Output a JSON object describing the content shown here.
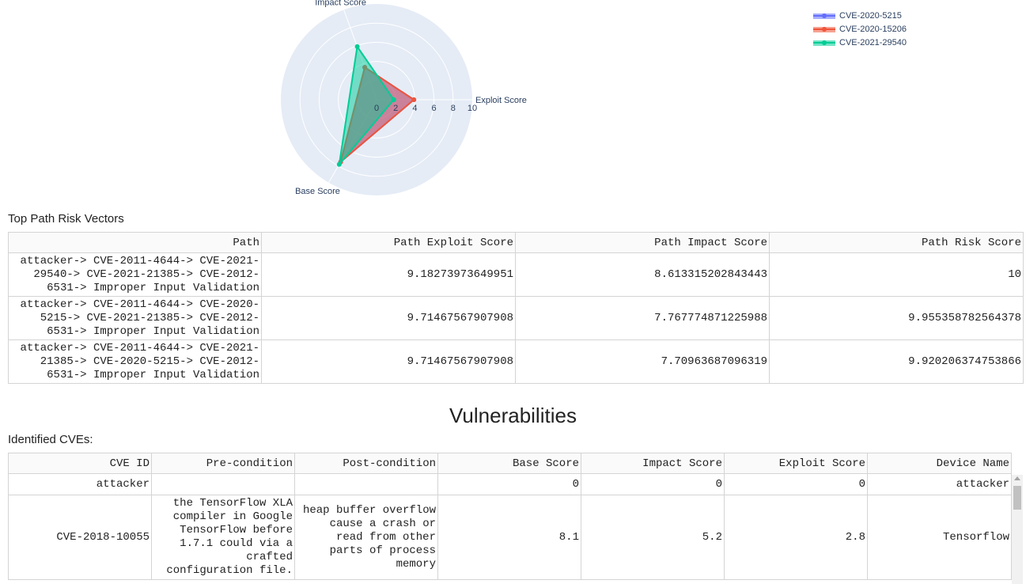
{
  "radar_chart": {
    "chart_data": {
      "type": "radar",
      "axes": [
        "Exploit Score",
        "Impact Score",
        "Base Score"
      ],
      "radial_range": [
        0,
        10
      ],
      "radial_ticks": [
        "0",
        "2",
        "4",
        "6",
        "8",
        "10"
      ],
      "series": [
        {
          "name": "CVE-2020-5215",
          "values": [
            3.9,
            3.6,
            7.5
          ],
          "color": "#636efa"
        },
        {
          "name": "CVE-2020-15206",
          "values": [
            3.9,
            3.6,
            7.5
          ],
          "color": "#ef553b"
        },
        {
          "name": "CVE-2021-29540",
          "values": [
            1.8,
            5.9,
            7.8
          ],
          "color": "#00cc96"
        }
      ],
      "legend_position": "top-right"
    }
  },
  "top_paths": {
    "title": "Top Path Risk Vectors",
    "columns": [
      "Path",
      "Path Exploit Score",
      "Path Impact Score",
      "Path Risk Score"
    ],
    "rows": [
      [
        "attacker-> CVE-2011-4644-> CVE-2021-29540-> CVE-2021-21385-> CVE-2012-6531-> Improper Input Validation",
        "9.18273973649951",
        "8.613315202843443",
        "10"
      ],
      [
        "attacker-> CVE-2011-4644-> CVE-2020-5215-> CVE-2021-21385-> CVE-2012-6531-> Improper Input Validation",
        "9.71467567907908",
        "7.767774871225988",
        "9.955358782564378"
      ],
      [
        "attacker-> CVE-2011-4644-> CVE-2021-21385-> CVE-2020-5215-> CVE-2012-6531-> Improper Input Validation",
        "9.71467567907908",
        "7.70963687096319",
        "9.920206374753866"
      ]
    ]
  },
  "vulnerabilities": {
    "heading": "Vulnerabilities",
    "identified_title": "Identified CVEs:",
    "columns": [
      "CVE ID",
      "Pre-condition",
      "Post-condition",
      "Base Score",
      "Impact Score",
      "Exploit Score",
      "Device Name"
    ],
    "rows": [
      [
        "attacker",
        "",
        "",
        "0",
        "0",
        "0",
        "attacker"
      ],
      [
        "CVE-2018-10055",
        "the TensorFlow XLA compiler in Google TensorFlow before 1.7.1 could via a crafted configuration file.",
        "heap buffer overflow cause a crash or read from other parts of process memory",
        "8.1",
        "5.2",
        "2.8",
        "Tensorflow"
      ]
    ]
  }
}
